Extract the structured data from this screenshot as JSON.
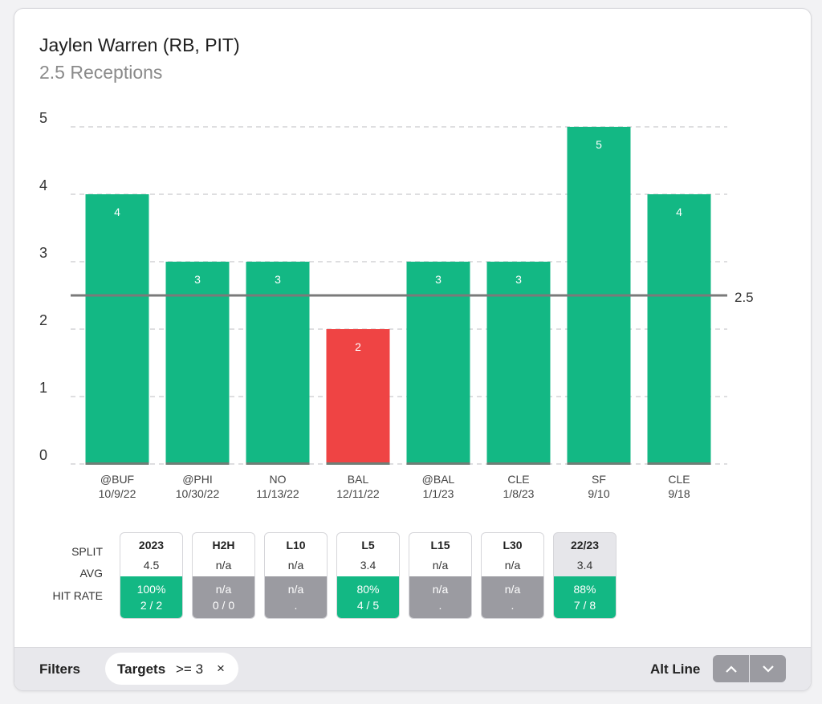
{
  "header": {
    "player": "Jaylen Warren (RB, PIT)",
    "market": "2.5 Receptions"
  },
  "colors": {
    "over": "#13b884",
    "under": "#ef4444",
    "na": "#9b9ba1",
    "line": "#7a7a7a",
    "grid": "#d3d3d6"
  },
  "chart_data": {
    "type": "bar",
    "title": "",
    "xlabel": "",
    "ylabel": "",
    "ylim": [
      0,
      5
    ],
    "yticks": [
      "0",
      "1",
      "2",
      "3",
      "4",
      "5"
    ],
    "grid": "dashed",
    "line_value": 2.5,
    "line_label": "2.5",
    "categories": [
      "@BUF",
      "@PHI",
      "NO",
      "BAL",
      "@BAL",
      "CLE",
      "SF",
      "CLE"
    ],
    "dates": [
      "10/9/22",
      "10/30/22",
      "11/13/22",
      "12/11/22",
      "1/1/23",
      "1/8/23",
      "9/10",
      "9/18"
    ],
    "values": [
      4,
      3,
      3,
      2,
      3,
      3,
      5,
      4
    ],
    "data_labels": [
      "4",
      "3",
      "3",
      "2",
      "3",
      "3",
      "5",
      "4"
    ],
    "result": [
      "over",
      "over",
      "over",
      "under",
      "over",
      "over",
      "over",
      "over"
    ]
  },
  "splits": {
    "row_labels": {
      "split": "SPLIT",
      "avg": "AVG",
      "hit_rate": "HIT RATE"
    },
    "items": [
      {
        "label": "2023",
        "avg": "4.5",
        "pct": "100%",
        "record": "2 / 2",
        "status": "over",
        "selected": false
      },
      {
        "label": "H2H",
        "avg": "n/a",
        "pct": "n/a",
        "record": "0 / 0",
        "status": "na",
        "selected": false
      },
      {
        "label": "L10",
        "avg": "n/a",
        "pct": "n/a",
        "record": ".",
        "status": "na",
        "selected": false
      },
      {
        "label": "L5",
        "avg": "3.4",
        "pct": "80%",
        "record": "4 / 5",
        "status": "over",
        "selected": false
      },
      {
        "label": "L15",
        "avg": "n/a",
        "pct": "n/a",
        "record": ".",
        "status": "na",
        "selected": false
      },
      {
        "label": "L30",
        "avg": "n/a",
        "pct": "n/a",
        "record": ".",
        "status": "na",
        "selected": false
      },
      {
        "label": "22/23",
        "avg": "3.4",
        "pct": "88%",
        "record": "7 / 8",
        "status": "over",
        "selected": true
      }
    ]
  },
  "footer": {
    "filters_label": "Filters",
    "filter_key": "Targets",
    "filter_value": ">= 3",
    "filter_remove": "×",
    "alt_line_label": "Alt Line",
    "up_icon": "chevron-up-icon",
    "down_icon": "chevron-down-icon"
  }
}
